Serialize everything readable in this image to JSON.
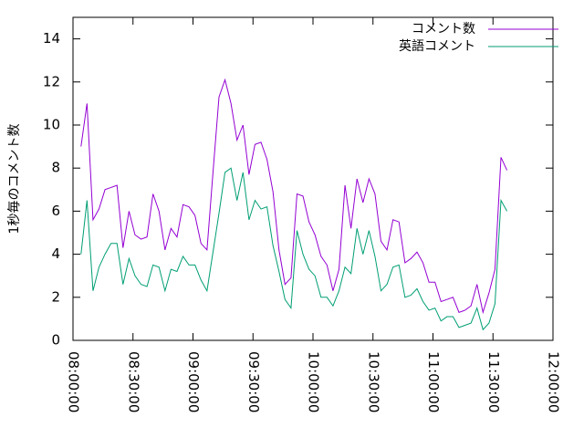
{
  "chart_data": {
    "type": "line",
    "y_label": "1秒毎のコメント数",
    "x": [
      "08:04:00",
      "08:07:00",
      "08:10:00",
      "08:13:00",
      "08:16:00",
      "08:19:00",
      "08:22:00",
      "08:25:00",
      "08:28:00",
      "08:31:00",
      "08:34:00",
      "08:37:00",
      "08:40:00",
      "08:43:00",
      "08:46:00",
      "08:49:00",
      "08:52:00",
      "08:55:00",
      "08:58:00",
      "09:01:00",
      "09:04:00",
      "09:07:00",
      "09:10:00",
      "09:13:00",
      "09:16:00",
      "09:19:00",
      "09:22:00",
      "09:25:00",
      "09:28:00",
      "09:31:00",
      "09:34:00",
      "09:37:00",
      "09:40:00",
      "09:43:00",
      "09:46:00",
      "09:49:00",
      "09:52:00",
      "09:55:00",
      "09:58:00",
      "10:01:00",
      "10:04:00",
      "10:07:00",
      "10:10:00",
      "10:13:00",
      "10:16:00",
      "10:19:00",
      "10:22:00",
      "10:25:00",
      "10:28:00",
      "10:31:00",
      "10:34:00",
      "10:37:00",
      "10:40:00",
      "10:43:00",
      "10:46:00",
      "10:49:00",
      "10:52:00",
      "10:55:00",
      "10:58:00",
      "11:01:00",
      "11:04:00",
      "11:07:00",
      "11:10:00",
      "11:13:00",
      "11:16:00",
      "11:19:00",
      "11:22:00",
      "11:25:00",
      "11:28:00",
      "11:31:00",
      "11:34:00",
      "11:37:00"
    ],
    "series": [
      {
        "name": "コメント数",
        "color": "#9400d3",
        "values": [
          9.0,
          11.0,
          5.6,
          6.1,
          7.0,
          7.1,
          7.2,
          4.3,
          6.0,
          4.9,
          4.7,
          4.8,
          6.8,
          6.0,
          4.2,
          5.2,
          4.8,
          6.3,
          6.2,
          5.8,
          4.5,
          4.2,
          7.8,
          11.3,
          12.1,
          11.0,
          9.3,
          10.0,
          7.7,
          9.1,
          9.2,
          8.4,
          6.9,
          4.2,
          2.6,
          2.9,
          6.8,
          6.7,
          5.5,
          4.9,
          3.9,
          3.5,
          2.3,
          3.3,
          7.2,
          5.2,
          7.5,
          6.4,
          7.5,
          6.8,
          4.6,
          4.2,
          5.6,
          5.5,
          3.6,
          3.8,
          4.1,
          3.6,
          2.7,
          2.7,
          1.8,
          1.9,
          2.0,
          1.3,
          1.4,
          1.6,
          2.6,
          1.3,
          2.2,
          3.3,
          8.5,
          7.9
        ]
      },
      {
        "name": "英語コメント",
        "color": "#009e73",
        "values": [
          4.0,
          6.5,
          2.3,
          3.4,
          4.0,
          4.5,
          4.5,
          2.6,
          3.8,
          3.0,
          2.6,
          2.5,
          3.5,
          3.4,
          2.3,
          3.3,
          3.2,
          3.9,
          3.5,
          3.5,
          2.8,
          2.3,
          4.1,
          5.9,
          7.8,
          8.0,
          6.5,
          7.8,
          5.6,
          6.5,
          6.1,
          6.2,
          4.4,
          3.2,
          1.9,
          1.5,
          5.1,
          4.0,
          3.3,
          3.0,
          2.0,
          2.0,
          1.6,
          2.3,
          3.4,
          3.1,
          5.2,
          4.0,
          5.1,
          3.9,
          2.3,
          2.6,
          3.4,
          3.5,
          2.0,
          2.1,
          2.4,
          1.8,
          1.4,
          1.5,
          0.9,
          1.1,
          1.1,
          0.6,
          0.7,
          0.8,
          1.5,
          0.5,
          0.8,
          1.7,
          6.5,
          6.0
        ]
      }
    ],
    "xlim": [
      "08:00:00",
      "12:00:00"
    ],
    "xticks": [
      "08:00:00",
      "08:30:00",
      "09:00:00",
      "09:30:00",
      "10:00:00",
      "10:30:00",
      "11:00:00",
      "11:30:00",
      "12:00:00"
    ],
    "ylim": [
      0,
      15
    ],
    "yticks": [
      0,
      2,
      4,
      6,
      8,
      10,
      12,
      14
    ],
    "grid": false,
    "legend": "top-right"
  }
}
